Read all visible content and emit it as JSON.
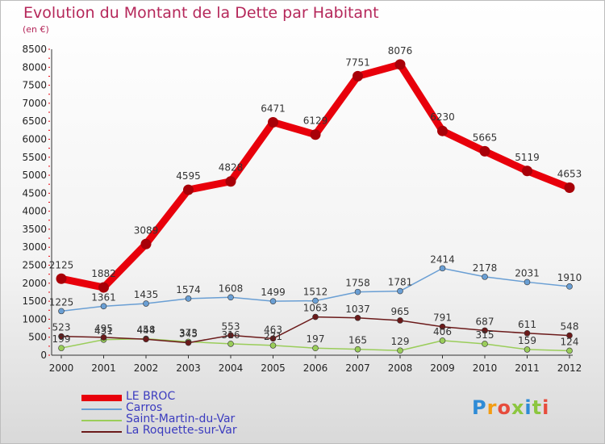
{
  "title": "Evolution du Montant de la Dette par Habitant",
  "subtitle": "(en €)",
  "logo": {
    "text": "Proxiti",
    "colors": [
      "#2e8bd6",
      "#f39c12",
      "#e74c3c",
      "#8cc63f",
      "#2e8bd6",
      "#8cc63f",
      "#e74c3c"
    ]
  },
  "chart_data": {
    "type": "line",
    "x": [
      "2000",
      "2001",
      "2002",
      "2003",
      "2004",
      "2005",
      "2006",
      "2007",
      "2008",
      "2009",
      "2010",
      "2011",
      "2012"
    ],
    "ylim": [
      0,
      8500
    ],
    "yticks": [
      "0",
      "500",
      "1000",
      "1500",
      "2000",
      "2500",
      "3000",
      "3500",
      "4000",
      "4500",
      "5000",
      "5500",
      "6000",
      "6500",
      "7000",
      "7500",
      "8000",
      "8500"
    ],
    "grid": false,
    "legend_position": "bottom-left",
    "series": [
      {
        "name": "LE BROC",
        "color": "#e8000b",
        "values": [
          2125,
          1882,
          3089,
          4595,
          4828,
          6471,
          6129,
          7751,
          8076,
          6230,
          5665,
          5119,
          4653
        ],
        "labels": [
          "2125",
          "1882",
          "3089",
          "4595",
          "4828",
          "6471",
          "6129",
          "7751",
          "8076",
          "6230",
          "5665",
          "5119",
          "4653"
        ]
      },
      {
        "name": "Carros",
        "color": "#6a9fd4",
        "values": [
          1225,
          1361,
          1435,
          1574,
          1608,
          1499,
          1512,
          1758,
          1781,
          2414,
          2178,
          2031,
          1910
        ],
        "labels": [
          "1225",
          "1361",
          "1435",
          "1574",
          "1608",
          "1499",
          "1512",
          "1758",
          "1781",
          "2414",
          "2178",
          "2031",
          "1910"
        ]
      },
      {
        "name": "Saint-Martin-du-Var",
        "color": "#9acd5a",
        "values": [
          199,
          431,
          458,
          373,
          316,
          271,
          197,
          165,
          129,
          406,
          315,
          159,
          124
        ],
        "labels": [
          "199",
          "431",
          "458",
          "373",
          "316",
          "271",
          "197",
          "165",
          "129",
          "406",
          "315",
          "159",
          "124"
        ]
      },
      {
        "name": "La Roquette-sur-Var",
        "color": "#6b1a1a",
        "values": [
          523,
          495,
          444,
          345,
          553,
          463,
          1063,
          1037,
          965,
          791,
          687,
          611,
          548
        ],
        "labels": [
          "523",
          "495",
          "444",
          "345",
          "553",
          "463",
          "1063",
          "1037",
          "965",
          "791",
          "687",
          "611",
          "548"
        ]
      }
    ]
  }
}
